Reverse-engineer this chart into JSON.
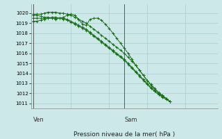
{
  "background_color": "#cce8e8",
  "grid_color": "#aacccc",
  "line_color": "#1a6e1a",
  "marker": "+",
  "xlabel_text": "Pression niveau de la mer( hPa )",
  "total_points": 37,
  "ylim": [
    1010.5,
    1020.9
  ],
  "yticks": [
    1011,
    1012,
    1013,
    1014,
    1015,
    1016,
    1017,
    1018,
    1019,
    1020
  ],
  "xlim": [
    0,
    36
  ],
  "ven_x": 0,
  "sam_x": 24,
  "series": [
    [
      1019.9,
      1019.9,
      1019.9,
      1020.0,
      1020.1,
      1020.1,
      1020.1,
      1020.0,
      1020.0,
      1019.9,
      1019.8,
      1019.6,
      1019.4,
      1019.2,
      1019.0,
      1018.7,
      1018.4,
      1018.1,
      1017.8,
      1017.5,
      1017.2,
      1016.9,
      1016.6,
      1016.3,
      1016.0,
      1015.6,
      1015.2,
      1014.8,
      1014.3,
      1013.8,
      1013.3,
      1012.9,
      1012.5,
      1012.1,
      1011.8,
      1011.5,
      1011.2
    ],
    [
      1019.5,
      1019.5,
      1019.5,
      1019.5,
      1019.5,
      1019.5,
      1019.5,
      1019.5,
      1019.5,
      1019.4,
      1019.2,
      1019.0,
      1018.8,
      1018.6,
      1018.4,
      1018.1,
      1017.8,
      1017.5,
      1017.2,
      1016.9,
      1016.6,
      1016.3,
      1016.0,
      1015.7,
      1015.4,
      1015.0,
      1014.6,
      1014.2,
      1013.8,
      1013.4,
      1013.0,
      1012.6,
      1012.2,
      1011.9,
      1011.6,
      1011.4,
      1011.2
    ],
    [
      1019.2,
      1019.2,
      1019.3,
      1019.4,
      1019.5,
      1019.6,
      1019.6,
      1019.5,
      1019.4,
      1019.3,
      1019.1,
      1018.9,
      1018.7,
      1018.5,
      1018.3,
      1018.0,
      1017.7,
      1017.4,
      1017.1,
      1016.8,
      1016.5,
      1016.2,
      1015.9,
      1015.6,
      1015.3,
      1014.9,
      1014.5,
      1014.1,
      1013.7,
      1013.3,
      1012.9,
      1012.5,
      1012.2,
      1011.9,
      1011.7,
      1011.5,
      1011.2
    ],
    [
      1019.8,
      1019.8,
      1019.7,
      1019.6,
      1019.6,
      1019.5,
      1019.4,
      1019.5,
      1019.6,
      1019.8,
      1019.9,
      1019.8,
      1019.4,
      1018.9,
      1018.8,
      1019.4,
      1019.5,
      1019.5,
      1019.3,
      1018.9,
      1018.5,
      1018.0,
      1017.5,
      1017.0,
      1016.5,
      1016.0,
      1015.4,
      1014.8,
      1014.3,
      1013.8,
      1013.3,
      1012.8,
      1012.4,
      1012.0,
      1011.8,
      1011.5,
      1011.2
    ]
  ]
}
